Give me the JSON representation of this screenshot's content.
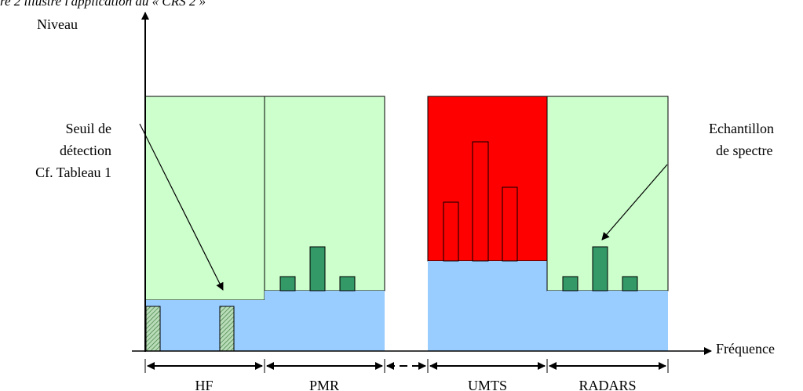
{
  "header_text": "re 2 illustre l'application du « CRS 2 »",
  "axes": {
    "y_label": "Niveau",
    "x_label": "Fréquence"
  },
  "bands": [
    {
      "name": "HF"
    },
    {
      "name": "PMR"
    },
    {
      "name": "UMTS"
    },
    {
      "name": "RADARS"
    }
  ],
  "annotations": {
    "threshold": [
      "Seuil de",
      "détection",
      "Cf. Tableau 1"
    ],
    "sample": [
      "Echantillon",
      "de spectre"
    ]
  },
  "colors": {
    "free_band": "#ccffcc",
    "occupied_band": "#ff0000",
    "threshold_zone": "#99ccff",
    "spectrum_sample": "#339966"
  }
}
